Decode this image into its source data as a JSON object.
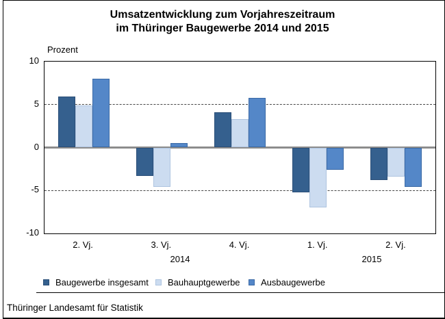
{
  "header": {
    "title_lines": [
      "Umsatzentwicklung zum Vorjahreszeitraum",
      "im Thüringer Baugewerbe 2014 und 2015"
    ]
  },
  "footer": {
    "source": "Thüringer Landesamt für Statistik"
  },
  "chart_data": {
    "type": "bar",
    "title": "Umsatzentwicklung zum Vorjahreszeitraum im Thüringer Baugewerbe 2014 und 2015",
    "xlabel": "",
    "ylabel": "Prozent",
    "ylim": [
      -10,
      10
    ],
    "yticks": [
      10,
      5,
      0,
      -5,
      -10
    ],
    "dashed_gridlines_at": [
      5,
      -5
    ],
    "grid": "horizontal-dashed",
    "legend_position": "bottom",
    "categories": [
      "2. Vj.",
      "3. Vj.",
      "4. Vj.",
      "1. Vj.",
      "2. Vj."
    ],
    "year_labels": [
      "2014",
      "2015"
    ],
    "series": [
      {
        "name": "Baugewerbe insgesamt",
        "color": "#35608E",
        "border_color": "#2A4E77",
        "values": [
          5.9,
          -3.3,
          4.1,
          -5.2,
          -3.8
        ]
      },
      {
        "name": "Bauhauptgewerbe",
        "color": "#CCDCF0",
        "border_color": "#AEC4E0",
        "values": [
          4.9,
          -4.6,
          3.3,
          -7.0,
          -3.4
        ]
      },
      {
        "name": "Ausbaugewerbe",
        "color": "#5487C8",
        "border_color": "#3A69A5",
        "values": [
          8.0,
          0.5,
          5.8,
          -2.6,
          -4.6
        ]
      }
    ]
  }
}
